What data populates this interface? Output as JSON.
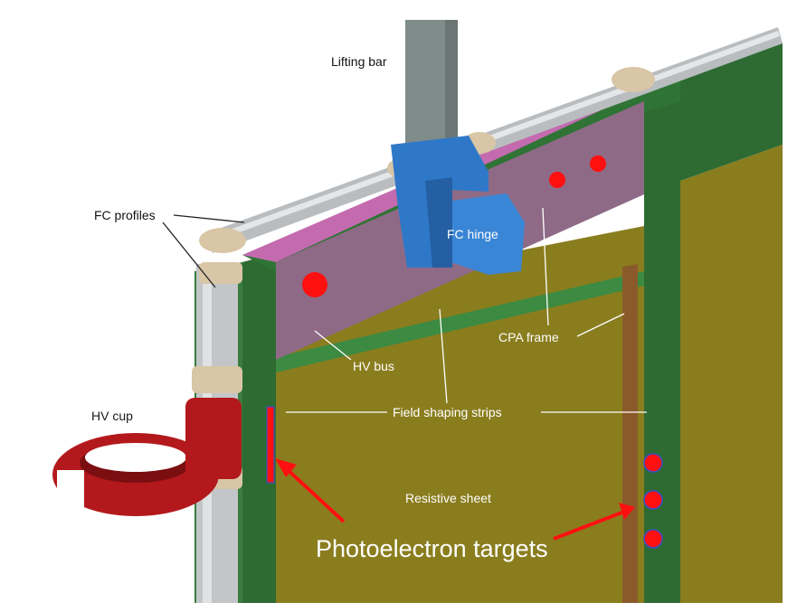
{
  "labels": {
    "lifting_bar": "Lifting bar",
    "fc_profiles": "FC profiles",
    "fc_hinge": "FC hinge",
    "cpa_frame": "CPA frame",
    "hv_bus": "HV bus",
    "hv_cup": "HV cup",
    "field_shaping_strips": "Field shaping strips",
    "resistive_sheet": "Resistive sheet",
    "photoelectron_targets": "Photoelectron targets"
  },
  "colors": {
    "target_red": "#ff1010",
    "frame_green": "#2d6b33",
    "sheet_olive": "#8a7d1e",
    "beam_mauve": "#8e6a86",
    "hinge_blue": "#2f78c8",
    "cup_red": "#b3191c",
    "profile_grey": "#c2c6c8"
  }
}
